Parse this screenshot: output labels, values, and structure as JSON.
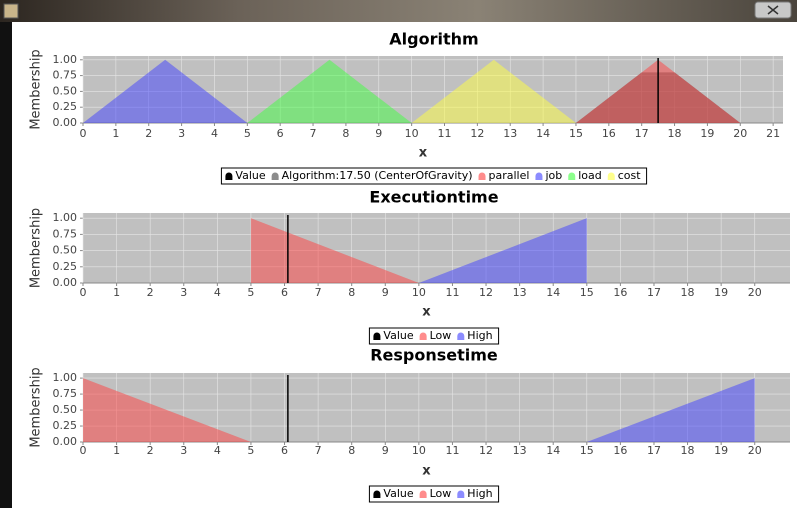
{
  "chart_data": [
    {
      "type": "area",
      "title": "Algorithm",
      "x_label": "x",
      "y_label": "Membership",
      "xlim": [
        0,
        21.3
      ],
      "ylim": [
        0,
        1.06
      ],
      "xticks": [
        0,
        1,
        2,
        3,
        4,
        5,
        6,
        7,
        8,
        9,
        10,
        11,
        12,
        13,
        14,
        15,
        16,
        17,
        18,
        19,
        20,
        21
      ],
      "yticks": [
        {
          "value": 0,
          "label": "0.00"
        },
        {
          "value": 0.25,
          "label": "0.25"
        },
        {
          "value": 0.5,
          "label": "0.50"
        },
        {
          "value": 0.75,
          "label": "0.75"
        },
        {
          "value": 1,
          "label": "1.00"
        }
      ],
      "grid": true,
      "marker": {
        "name": "Value",
        "color": "#000000",
        "x": 17.5
      },
      "series": [
        {
          "name": "Algorithm:17.50 (CenterOfGravity)",
          "color": "#404040",
          "x": [
            15,
            17,
            18,
            20
          ],
          "values": [
            0,
            0.8,
            0.8,
            0
          ]
        },
        {
          "name": "parallel",
          "color": "#ff4040",
          "x": [
            15,
            17.5,
            20
          ],
          "values": [
            0,
            1,
            0
          ]
        },
        {
          "name": "job",
          "color": "#4040ff",
          "x": [
            0,
            2.5,
            5
          ],
          "values": [
            0,
            1,
            0
          ]
        },
        {
          "name": "load",
          "color": "#40ff40",
          "x": [
            5,
            7.5,
            10
          ],
          "values": [
            0,
            1,
            0
          ]
        },
        {
          "name": "cost",
          "color": "#ffff40",
          "x": [
            10,
            12.5,
            15
          ],
          "values": [
            0,
            1,
            0
          ]
        }
      ]
    },
    {
      "type": "area",
      "title": "Executiontime",
      "x_label": "x",
      "y_label": "Membership",
      "xlim": [
        0,
        21.05
      ],
      "ylim": [
        0,
        1.08
      ],
      "xticks": [
        0,
        1,
        2,
        3,
        4,
        5,
        6,
        7,
        8,
        9,
        10,
        11,
        12,
        13,
        14,
        15,
        16,
        17,
        18,
        19,
        20
      ],
      "yticks": [
        {
          "value": 0,
          "label": "0.00"
        },
        {
          "value": 0.25,
          "label": "0.25"
        },
        {
          "value": 0.5,
          "label": "0.50"
        },
        {
          "value": 0.75,
          "label": "0.75"
        },
        {
          "value": 1,
          "label": "1.00"
        }
      ],
      "grid": true,
      "marker": {
        "name": "Value",
        "color": "#000000",
        "x": 6.1
      },
      "series": [
        {
          "name": "Low",
          "color": "#ff4040",
          "x": [
            5,
            5,
            10
          ],
          "values": [
            0,
            1,
            0
          ]
        },
        {
          "name": "High",
          "color": "#4040ff",
          "x": [
            10,
            15,
            15
          ],
          "values": [
            0,
            1,
            0
          ]
        }
      ]
    },
    {
      "type": "area",
      "title": "Responsetime",
      "x_label": "x",
      "y_label": "Membership",
      "xlim": [
        0,
        21.05
      ],
      "ylim": [
        0,
        1.08
      ],
      "xticks": [
        0,
        1,
        2,
        3,
        4,
        5,
        6,
        7,
        8,
        9,
        10,
        11,
        12,
        13,
        14,
        15,
        16,
        17,
        18,
        19,
        20
      ],
      "yticks": [
        {
          "value": 0,
          "label": "0.00"
        },
        {
          "value": 0.25,
          "label": "0.25"
        },
        {
          "value": 0.5,
          "label": "0.50"
        },
        {
          "value": 0.75,
          "label": "0.75"
        },
        {
          "value": 1,
          "label": "1.00"
        }
      ],
      "grid": true,
      "marker": {
        "name": "Value",
        "color": "#000000",
        "x": 6.1
      },
      "series": [
        {
          "name": "Low",
          "color": "#ff4040",
          "x": [
            0,
            0,
            5
          ],
          "values": [
            0,
            1,
            0
          ]
        },
        {
          "name": "High",
          "color": "#4040ff",
          "x": [
            15,
            20,
            20
          ],
          "values": [
            0,
            1,
            0
          ]
        }
      ]
    }
  ]
}
